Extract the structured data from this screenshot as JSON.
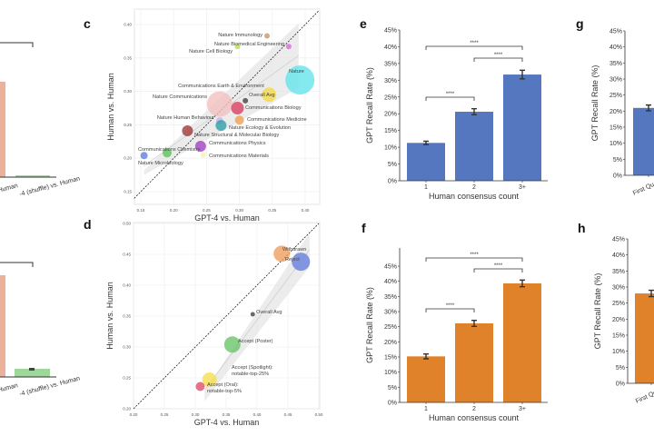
{
  "panels": {
    "c": "c",
    "d": "d",
    "e": "e",
    "f": "f",
    "g": "g",
    "h": "h"
  },
  "left_partial": {
    "xtick_1": "Human",
    "xtick_2": "-4 (shuffle) vs. Human"
  },
  "chart_data": [
    {
      "id": "c",
      "type": "scatter",
      "xlabel": "GPT-4 vs. Human",
      "ylabel": "Human vs. Human",
      "xlim": [
        0.14,
        0.42
      ],
      "ylim": [
        0.14,
        0.42
      ],
      "xticks": [
        "0.15",
        "0.20",
        "0.25",
        "0.30",
        "0.35",
        "0.40"
      ],
      "yticks": [
        "0.15",
        "0.20",
        "0.25",
        "0.30",
        "0.35",
        "0.40"
      ],
      "diagonal": true,
      "regression_band": true,
      "grid": true,
      "points": [
        {
          "label": "Nature Immunology",
          "x": 0.342,
          "y": 0.383,
          "size": 3,
          "color": "#c49a6c"
        },
        {
          "label": "Nature Biomedical Engineering",
          "x": 0.375,
          "y": 0.367,
          "size": 3,
          "color": "#e066e0"
        },
        {
          "label": "Nature Cell Biology",
          "x": 0.297,
          "y": 0.367,
          "size": 3,
          "color": "#b8e04a"
        },
        {
          "label": "Nature",
          "x": 0.392,
          "y": 0.317,
          "size": 16,
          "color": "#66e4ec"
        },
        {
          "label": "Communications Earth & Environment",
          "x": 0.345,
          "y": 0.295,
          "size": 8,
          "color": "#f5d94a"
        },
        {
          "label": "Nature Communications",
          "x": 0.27,
          "y": 0.281,
          "size": 14,
          "color": "#f2c0c0"
        },
        {
          "label": "Overall Avg",
          "x": 0.309,
          "y": 0.286,
          "size": 3,
          "color": "#444444"
        },
        {
          "label": "Communications Biology",
          "x": 0.297,
          "y": 0.275,
          "size": 7,
          "color": "#d94060"
        },
        {
          "label": "Nature Human Behaviour",
          "x": 0.27,
          "y": 0.256,
          "size": 4,
          "color": "#c8b8f0"
        },
        {
          "label": "Communications Medicine",
          "x": 0.3,
          "y": 0.257,
          "size": 5,
          "color": "#f0a050"
        },
        {
          "label": "Nature Ecology & Evolution",
          "x": 0.272,
          "y": 0.249,
          "size": 6,
          "color": "#30a0a8"
        },
        {
          "label": "Nature Structural & Molecular Biology",
          "x": 0.221,
          "y": 0.241,
          "size": 6,
          "color": "#a03838"
        },
        {
          "label": "Communications Physics",
          "x": 0.241,
          "y": 0.218,
          "size": 6,
          "color": "#a040c0"
        },
        {
          "label": "Communications Chemistry",
          "x": 0.19,
          "y": 0.208,
          "size": 5,
          "color": "#60c060"
        },
        {
          "label": "Communications Materials",
          "x": 0.155,
          "y": 0.204,
          "size": 4,
          "color": "#6080e0"
        },
        {
          "label": "Nature Microbiology",
          "x": 0.245,
          "y": 0.205,
          "size": 3,
          "color": "#f8f0b0"
        }
      ]
    },
    {
      "id": "d",
      "type": "scatter",
      "xlabel": "GPT-4 vs. Human",
      "ylabel": "Human vs. Human",
      "xlim": [
        0.2,
        0.5
      ],
      "ylim": [
        0.2,
        0.5
      ],
      "xticks": [
        "0.20",
        "0.25",
        "0.30",
        "0.35",
        "0.40",
        "0.45",
        "0.50"
      ],
      "yticks": [
        "0.20",
        "0.25",
        "0.30",
        "0.35",
        "0.40",
        "0.45",
        "0.50"
      ],
      "diagonal": true,
      "regression_band": true,
      "grid": true,
      "points": [
        {
          "label": "Withdrawn",
          "x": 0.44,
          "y": 0.451,
          "size": 9,
          "color": "#f0a060"
        },
        {
          "label": "Reject",
          "x": 0.471,
          "y": 0.438,
          "size": 10,
          "color": "#6680dd"
        },
        {
          "label": "Overall Avg",
          "x": 0.393,
          "y": 0.353,
          "size": 2.5,
          "color": "#444444"
        },
        {
          "label": "Accept (Poster)",
          "x": 0.36,
          "y": 0.304,
          "size": 9,
          "color": "#6cc46c"
        },
        {
          "label": "Accept (Spotlight): notable-top-25%",
          "x": 0.323,
          "y": 0.247,
          "size": 8,
          "color": "#f5e050"
        },
        {
          "label": "Accept (Oral): notable-top-5%",
          "x": 0.308,
          "y": 0.236,
          "size": 5,
          "color": "#e0506a"
        }
      ]
    },
    {
      "id": "e",
      "type": "bar",
      "xlabel": "Human consensus count",
      "ylabel": "GPT Recall Rate (%)",
      "ylim": [
        0,
        45
      ],
      "yticks": [
        "0%",
        "5%",
        "10%",
        "15%",
        "20%",
        "25%",
        "30%",
        "35%",
        "40%",
        "45%"
      ],
      "categories": [
        "1",
        "2",
        "3+"
      ],
      "values": [
        11.3,
        20.6,
        31.7
      ],
      "errors": [
        0.5,
        0.9,
        1.3
      ],
      "color": "#5577c0",
      "significance": [
        {
          "from": 0,
          "to": 1,
          "label": "****"
        },
        {
          "from": 1,
          "to": 2,
          "label": "****"
        },
        {
          "from": 0,
          "to": 2,
          "label": "****"
        }
      ]
    },
    {
      "id": "f",
      "type": "bar",
      "xlabel": "Human consensus count",
      "ylabel": "GPT Recall Rate (%)",
      "ylim": [
        0,
        45
      ],
      "yticks": [
        "0%",
        "5%",
        "10%",
        "15%",
        "20%",
        "25%",
        "30%",
        "35%",
        "40%",
        "45%"
      ],
      "categories": [
        "1",
        "2",
        "3+"
      ],
      "values": [
        15.2,
        26.1,
        39.3
      ],
      "errors": [
        0.8,
        1.0,
        1.1
      ],
      "color": "#e0822a",
      "significance": [
        {
          "from": 0,
          "to": 1,
          "label": "****"
        },
        {
          "from": 1,
          "to": 2,
          "label": "****"
        },
        {
          "from": 0,
          "to": 2,
          "label": "****"
        }
      ]
    },
    {
      "id": "g",
      "type": "bar",
      "xlabel": "Hu",
      "ylabel": "GPT Recall Rate (%)",
      "ylim": [
        0,
        45
      ],
      "yticks": [
        "0%",
        "5%",
        "10%",
        "15%",
        "20%",
        "25%",
        "30%",
        "35%",
        "40%",
        "45%"
      ],
      "categories": [
        "First Qu"
      ],
      "values": [
        21.0
      ],
      "errors": [
        0.9
      ],
      "color": "#5577c0"
    },
    {
      "id": "h",
      "type": "bar",
      "xlabel": "Hu",
      "ylabel": "GPT Recall Rate (%)",
      "ylim": [
        0,
        45
      ],
      "yticks": [
        "0%",
        "5%",
        "10%",
        "15%",
        "20%",
        "25%",
        "30%",
        "35%",
        "40%",
        "45%"
      ],
      "categories": [
        "First Qu"
      ],
      "values": [
        28.0
      ],
      "errors": [
        1.0
      ],
      "color": "#e0822a"
    }
  ]
}
